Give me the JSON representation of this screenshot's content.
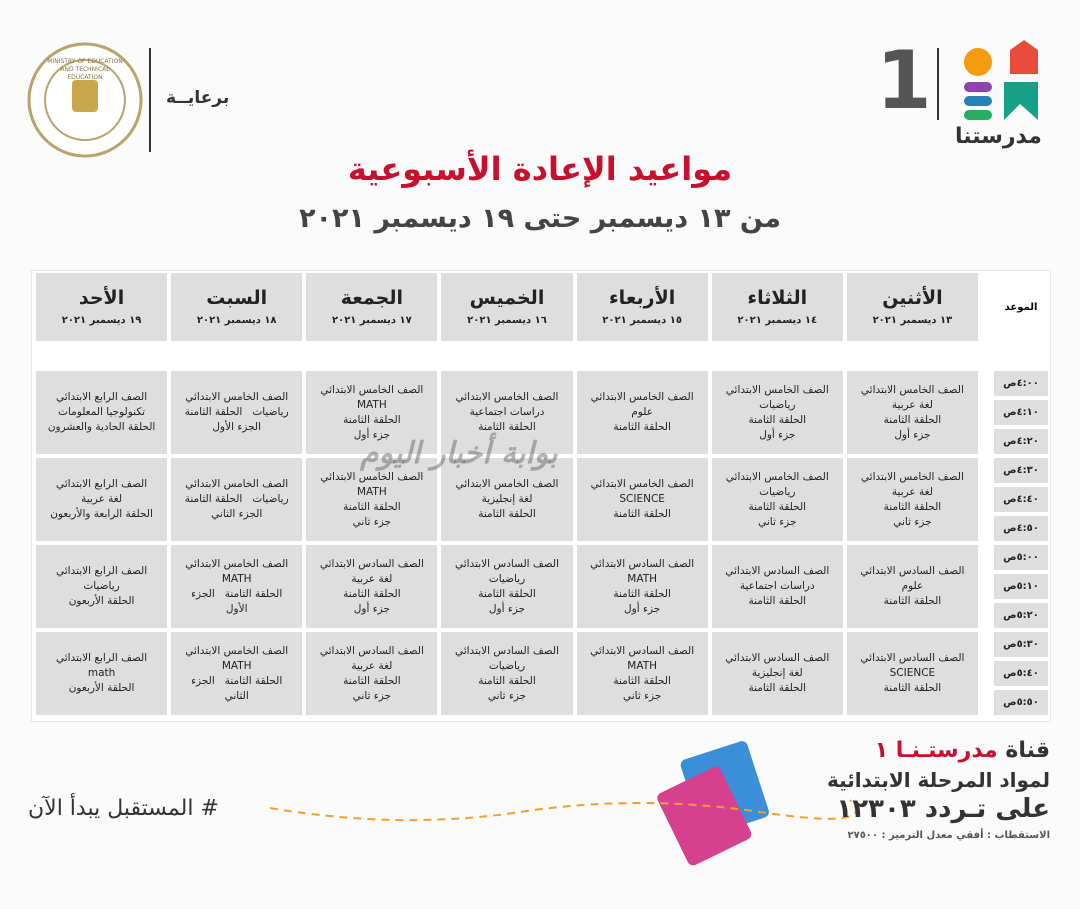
{
  "header": {
    "sponsor": "برعايــة",
    "seal_text": "MINISTRY OF EDUCATION AND TECHNICAL EDUCATION",
    "logo_text": "مدرستنا",
    "logo_number": "1",
    "title": "مواعيد الإعادة الأسبوعية",
    "subtitle": "من ١٣ ديسمبر حتى ١٩ ديسمبر ٢٠٢١"
  },
  "table": {
    "time_header": "الموعد",
    "days": [
      {
        "name": "الأثنين",
        "date": "١٣ ديسمبر ٢٠٢١"
      },
      {
        "name": "الثلاثاء",
        "date": "١٤ ديسمبر ٢٠٢١"
      },
      {
        "name": "الأربعاء",
        "date": "١٥ ديسمبر ٢٠٢١"
      },
      {
        "name": "الخميس",
        "date": "١٦ ديسمبر ٢٠٢١"
      },
      {
        "name": "الجمعة",
        "date": "١٧ ديسمبر ٢٠٢١"
      },
      {
        "name": "السبت",
        "date": "١٨ ديسمبر ٢٠٢١"
      },
      {
        "name": "الأحد",
        "date": "١٩ ديسمبر ٢٠٢١"
      }
    ],
    "times": [
      "٤:٠٠ص",
      "٤:١٠ص",
      "٤:٢٠ص",
      "٤:٣٠ص",
      "٤:٤٠ص",
      "٤:٥٠ص",
      "٥:٠٠ص",
      "٥:١٠ص",
      "٥:٢٠ص",
      "٥:٣٠ص",
      "٥:٤٠ص",
      "٥:٥٠ص"
    ],
    "blocks": [
      [
        [
          "الصف الخامس الابتدائي",
          "لغة عربية",
          "الحلقة الثامنة",
          "جزء أول"
        ],
        [
          "الصف الخامس الابتدائي",
          "رياضيات",
          "الحلقة الثامنة",
          "جزء أول"
        ],
        [
          "الصف الخامس الابتدائي",
          "علوم",
          "الحلقة الثامنة"
        ],
        [
          "الصف الخامس الابتدائي",
          "دراسات اجتماعية",
          "الحلقة الثامنة"
        ],
        [
          "الصف الخامس الابتدائي",
          "MATH",
          "الحلقة الثامنة",
          "جزء أول"
        ],
        [
          "الصف الخامس الابتدائي",
          "رياضيات   الحلقة الثامنة",
          "الجزء الأول"
        ],
        [
          "الصف الرابع الابتدائي",
          "تكنولوجيا المعلومات",
          "الحلقة الحادية والعشرون"
        ]
      ],
      [
        [
          "الصف الخامس الابتدائي",
          "لغة عربية",
          "الحلقة الثامنة",
          "جزء ثاني"
        ],
        [
          "الصف الخامس الابتدائي",
          "رياضيات",
          "الحلقة الثامنة",
          "جزء ثاني"
        ],
        [
          "الصف الخامس الابتدائي",
          "SCIENCE",
          "الحلقة الثامنة"
        ],
        [
          "الصف الخامس الابتدائي",
          "لغة إنجليزية",
          "الحلقة الثامنة"
        ],
        [
          "الصف الخامس الابتدائي",
          "MATH",
          "الحلقة الثامنة",
          "جزء ثاني"
        ],
        [
          "الصف الخامس الابتدائي",
          "رياضيات   الحلقة الثامنة",
          "الجزء الثاني"
        ],
        [
          "الصف الرابع الابتدائي",
          "لغة عربية",
          "الحلقة الرابعة والأربعون"
        ]
      ],
      [
        [
          "الصف السادس الابتدائي",
          "علوم",
          "الحلقة الثامنة"
        ],
        [
          "الصف السادس الابتدائي",
          "دراسات اجتماعية",
          "الحلقة الثامنة"
        ],
        [
          "الصف السادس الابتدائي",
          "MATH",
          "الحلقة الثامنة",
          "جزء أول"
        ],
        [
          "الصف السادس الابتدائي",
          "رياضيات",
          "الحلقة الثامنة",
          "جزء أول"
        ],
        [
          "الصف السادس الابتدائي",
          "لغة عربية",
          "الحلقة الثامنة",
          "جزء أول"
        ],
        [
          "الصف الخامس الابتدائي",
          "MATH",
          "الحلقة الثامنة   الجزء",
          "الأول"
        ],
        [
          "الصف الرابع الابتدائي",
          "رياضيات",
          "الحلقة الأربعون"
        ]
      ],
      [
        [
          "الصف السادس الابتدائي",
          "SCIENCE",
          "الحلقة الثامنة"
        ],
        [
          "الصف السادس الابتدائي",
          "لغة إنجليزية",
          "الحلقة الثامنة"
        ],
        [
          "الصف السادس الابتدائي",
          "MATH",
          "الحلقة الثامنة",
          "جزء ثاني"
        ],
        [
          "الصف السادس الابتدائي",
          "رياضيات",
          "الحلقة الثامنة",
          "جزء ثاني"
        ],
        [
          "الصف السادس الابتدائي",
          "لغة عربية",
          "الحلقة الثامنة",
          "جزء ثاني"
        ],
        [
          "الصف الخامس الابتدائي",
          "MATH",
          "الحلقة الثامنة   الجزء",
          "الثاني"
        ],
        [
          "الصف الرابع الابتدائي",
          "math",
          "الحلقة الأربعون"
        ]
      ]
    ]
  },
  "watermark": "بوابة أخبار اليوم",
  "footer": {
    "channel_prefix": "قناة",
    "channel_name": "مدرستـنـا ١",
    "line2": "لمواد المرحلة الابتدائية",
    "line3": "على تـردد ١٢٣٠٣",
    "reception": "الاستقطاب : أفقي معدل الترميز : ٢٧٥٠٠",
    "hashtag": "# المستقبل يبدأ الآن"
  }
}
